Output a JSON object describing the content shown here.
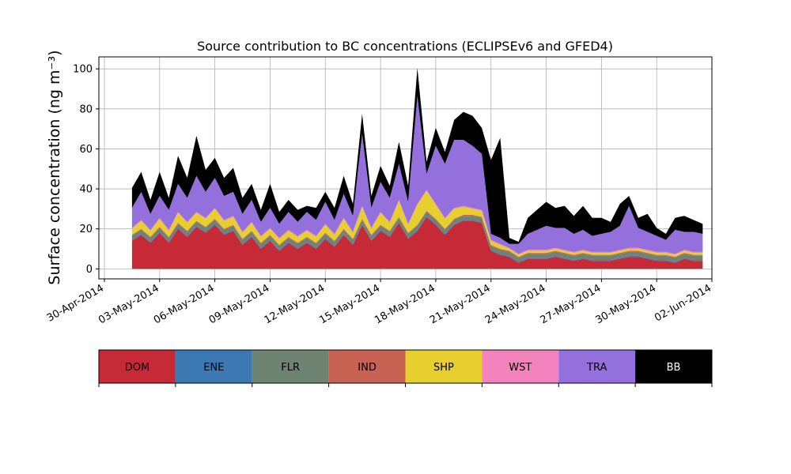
{
  "chart_data": {
    "type": "area",
    "title": "Source contribution to BC concentrations (ECLIPSEv6 and GFED4)",
    "ylabel": "Surface concentration (ng m⁻³)",
    "xlabel": "",
    "xlim": [
      -0.3,
      33.0
    ],
    "ylim": [
      -5,
      106
    ],
    "yticks": [
      0,
      20,
      40,
      60,
      80,
      100
    ],
    "xticks": [
      {
        "day": 0,
        "label": "30-Apr-2014"
      },
      {
        "day": 3,
        "label": "03-May-2014"
      },
      {
        "day": 6,
        "label": "06-May-2014"
      },
      {
        "day": 9,
        "label": "09-May-2014"
      },
      {
        "day": 12,
        "label": "12-May-2014"
      },
      {
        "day": 15,
        "label": "15-May-2014"
      },
      {
        "day": 18,
        "label": "18-May-2014"
      },
      {
        "day": 21,
        "label": "21-May-2014"
      },
      {
        "day": 24,
        "label": "24-May-2014"
      },
      {
        "day": 27,
        "label": "27-May-2014"
      },
      {
        "day": 30,
        "label": "30-May-2014"
      },
      {
        "day": 33,
        "label": "02-Jun-2014"
      }
    ],
    "grid": true,
    "stacked": true,
    "x": [
      1.5,
      2,
      2.5,
      3,
      3.5,
      4,
      4.5,
      5,
      5.5,
      6,
      6.5,
      7,
      7.5,
      8,
      8.5,
      9,
      9.5,
      10,
      10.5,
      11,
      11.5,
      12,
      12.5,
      13,
      13.5,
      14,
      14.5,
      15,
      15.5,
      16,
      16.5,
      17,
      17.5,
      18,
      18.5,
      19,
      19.5,
      20,
      20.5,
      21,
      21.5,
      22,
      22.5,
      23,
      23.5,
      24,
      24.5,
      25,
      25.5,
      26,
      26.5,
      27,
      27.5,
      28,
      28.5,
      29,
      29.5,
      30,
      30.5,
      31,
      31.5,
      32,
      32.5
    ],
    "series": [
      {
        "name": "DOM",
        "color": "#c62a36",
        "values": [
          14,
          17,
          13,
          18,
          13,
          20,
          16,
          21,
          18,
          22,
          17,
          19,
          12,
          16,
          10,
          14,
          9,
          13,
          10,
          13,
          10,
          15,
          11,
          17,
          12,
          22,
          14,
          19,
          16,
          23,
          15,
          19,
          26,
          22,
          17,
          22,
          24,
          24,
          23,
          9,
          7,
          6,
          3,
          5,
          5,
          5,
          6,
          5,
          4,
          5,
          4,
          4,
          4,
          5,
          6,
          6,
          5,
          4,
          4,
          3,
          5,
          4,
          4
        ]
      },
      {
        "name": "ENE",
        "color": "#3c78b1",
        "values": [
          0.5,
          0.5,
          0.5,
          0.5,
          0.5,
          0.5,
          0.5,
          0.5,
          0.5,
          0.5,
          0.5,
          0.5,
          0.5,
          0.5,
          0.5,
          0.5,
          0.5,
          0.5,
          0.5,
          0.5,
          0.5,
          0.5,
          0.5,
          0.5,
          0.5,
          0.5,
          0.5,
          0.5,
          0.5,
          0.5,
          0.5,
          0.5,
          0.5,
          0.5,
          0.5,
          0.5,
          0.5,
          0.5,
          0.5,
          0.5,
          0.5,
          0.5,
          0.5,
          0.5,
          0.5,
          0.5,
          0.5,
          0.5,
          0.5,
          0.5,
          0.5,
          0.5,
          0.5,
          0.5,
          0.5,
          0.5,
          0.5,
          0.5,
          0.5,
          0.5,
          0.5,
          0.5,
          0.5
        ]
      },
      {
        "name": "FLR",
        "color": "#6e8372",
        "values": [
          2,
          2,
          2,
          2,
          2,
          2,
          2,
          2,
          2,
          2,
          2,
          2,
          2,
          2,
          2,
          2,
          2,
          2,
          2,
          2,
          2,
          2,
          2,
          2,
          2,
          2,
          2,
          2,
          2,
          2,
          2,
          2,
          2,
          2,
          2,
          2,
          2,
          2,
          2,
          2,
          2,
          2,
          2,
          2,
          2,
          2,
          2,
          2,
          2,
          2,
          2,
          2,
          2,
          2,
          2,
          2,
          2,
          2,
          2,
          2,
          2,
          2,
          2
        ]
      },
      {
        "name": "IND",
        "color": "#c86253",
        "values": [
          0.5,
          0.5,
          0.5,
          0.5,
          0.5,
          0.5,
          0.5,
          0.5,
          0.5,
          0.5,
          0.5,
          0.5,
          0.5,
          0.5,
          0.5,
          0.5,
          0.5,
          0.5,
          0.5,
          0.5,
          0.5,
          0.5,
          0.5,
          0.5,
          0.5,
          0.5,
          0.5,
          0.5,
          0.5,
          0.5,
          0.5,
          0.5,
          0.5,
          0.5,
          0.5,
          0.5,
          0.5,
          0.5,
          0.5,
          0.5,
          0.5,
          0.5,
          0.5,
          0.5,
          0.5,
          0.5,
          0.5,
          0.5,
          0.5,
          0.5,
          0.5,
          0.5,
          0.5,
          0.5,
          0.5,
          0.5,
          0.5,
          0.5,
          0.5,
          0.5,
          0.5,
          0.5,
          0.5
        ]
      },
      {
        "name": "SHP",
        "color": "#e6cf2e",
        "values": [
          3,
          4,
          3,
          4,
          3,
          5,
          4,
          4,
          4,
          5,
          4,
          4,
          3,
          4,
          3,
          3,
          3,
          3,
          3,
          3,
          3,
          4,
          3,
          5,
          3,
          6,
          3,
          6,
          4,
          8,
          4,
          10,
          10,
          7,
          5,
          5,
          4,
          3,
          3,
          2,
          2,
          1,
          1,
          1,
          1,
          1,
          1,
          1,
          1,
          1,
          1,
          1,
          1,
          1,
          1,
          1,
          1,
          1,
          1,
          1,
          1,
          1,
          1
        ]
      },
      {
        "name": "WST",
        "color": "#f283bd",
        "values": [
          0.5,
          0.5,
          0.5,
          0.5,
          0.5,
          0.5,
          0.5,
          0.5,
          0.5,
          0.5,
          0.5,
          0.5,
          0.5,
          0.5,
          0.5,
          0.5,
          0.5,
          0.5,
          0.5,
          0.5,
          0.5,
          0.5,
          0.5,
          0.5,
          0.5,
          0.5,
          0.5,
          0.5,
          0.5,
          0.5,
          0.5,
          0.5,
          0.5,
          0.5,
          0.5,
          0.5,
          0.5,
          0.5,
          0.5,
          0.5,
          0.5,
          0.5,
          0.5,
          0.5,
          0.5,
          0.5,
          0.5,
          0.5,
          0.5,
          0.5,
          0.5,
          0.5,
          0.5,
          0.5,
          0.5,
          0.5,
          0.5,
          0.5,
          0.5,
          0.5,
          0.5,
          0.5,
          0.5
        ]
      },
      {
        "name": "TRA",
        "color": "#9370db",
        "values": [
          10,
          14,
          8,
          11,
          10,
          14,
          12,
          18,
          13,
          15,
          12,
          12,
          9,
          11,
          7,
          10,
          7,
          9,
          7,
          9,
          8,
          11,
          7,
          12,
          8,
          36,
          10,
          15,
          12,
          18,
          11,
          54,
          8,
          29,
          27,
          34,
          33,
          31,
          28,
          3,
          3,
          2,
          5,
          8,
          10,
          12,
          10,
          11,
          9,
          10,
          8,
          9,
          10,
          12,
          21,
          10,
          9,
          8,
          6,
          12,
          9,
          10,
          9
        ]
      },
      {
        "name": "BB",
        "color": "#000000",
        "values": [
          10,
          10,
          7,
          12,
          6,
          14,
          10,
          20,
          11,
          10,
          9,
          12,
          8,
          8,
          6,
          12,
          6,
          6,
          6,
          3,
          6,
          5,
          6,
          9,
          6,
          10,
          6,
          8,
          6,
          11,
          8,
          14,
          6,
          9,
          6,
          10,
          14,
          15,
          13,
          37,
          50,
          3,
          1,
          8,
          10,
          12,
          10,
          11,
          9,
          12,
          9,
          8,
          5,
          11,
          5,
          5,
          9,
          4,
          3,
          6,
          8,
          6,
          5
        ]
      }
    ]
  },
  "legend": {
    "items": [
      {
        "label": "DOM",
        "color": "#c62a36",
        "text_color": "#000000"
      },
      {
        "label": "ENE",
        "color": "#3c78b1",
        "text_color": "#000000"
      },
      {
        "label": "FLR",
        "color": "#6e8372",
        "text_color": "#000000"
      },
      {
        "label": "IND",
        "color": "#c86253",
        "text_color": "#000000"
      },
      {
        "label": "SHP",
        "color": "#e6cf2e",
        "text_color": "#000000"
      },
      {
        "label": "WST",
        "color": "#f283bd",
        "text_color": "#000000"
      },
      {
        "label": "TRA",
        "color": "#9370db",
        "text_color": "#000000"
      },
      {
        "label": "BB",
        "color": "#000000",
        "text_color": "#ffffff"
      }
    ]
  }
}
